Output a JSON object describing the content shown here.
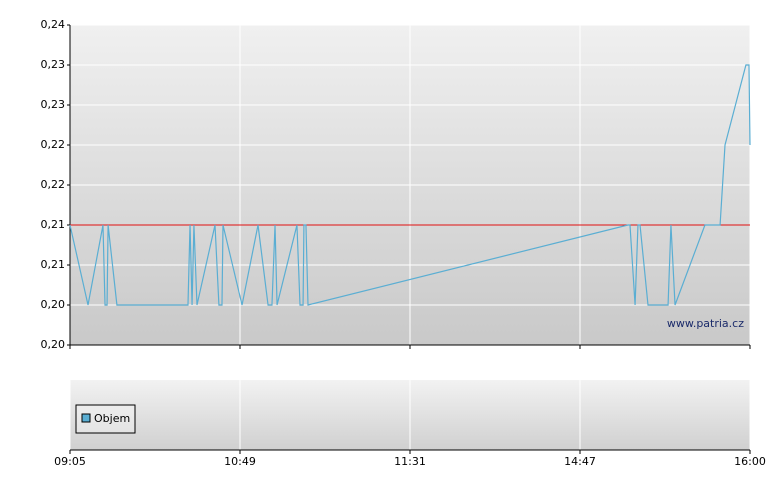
{
  "chart_data": {
    "type": "line",
    "watermark": "www.patria.cz",
    "legend_label": "Objem",
    "xlim": [
      0,
      4
    ],
    "xticks": [
      {
        "value": 0,
        "label": "09:05"
      },
      {
        "value": 1,
        "label": "10:49"
      },
      {
        "value": 2,
        "label": "11:31"
      },
      {
        "value": 3,
        "label": "14:47"
      },
      {
        "value": 4,
        "label": "16:00"
      }
    ],
    "ylim": [
      0.2,
      0.24
    ],
    "yticks": [
      {
        "value": 0.2,
        "label": "0,20"
      },
      {
        "value": 0.205,
        "label": "0,20"
      },
      {
        "value": 0.21,
        "label": "0,21"
      },
      {
        "value": 0.215,
        "label": "0,21"
      },
      {
        "value": 0.22,
        "label": "0,22"
      },
      {
        "value": 0.225,
        "label": "0,22"
      },
      {
        "value": 0.23,
        "label": "0,23"
      },
      {
        "value": 0.235,
        "label": "0,23"
      },
      {
        "value": 0.24,
        "label": "0,24"
      }
    ],
    "grid": true,
    "reference_line": {
      "value": 0.215,
      "color": "#e01010"
    },
    "color": "#5aaed3",
    "x": [
      0,
      0.106,
      0.194,
      0.206,
      0.218,
      0.224,
      0.276,
      0.694,
      0.706,
      0.718,
      0.729,
      0.747,
      0.853,
      0.876,
      0.894,
      0.9,
      1.012,
      1.106,
      1.165,
      1.188,
      1.206,
      1.218,
      1.335,
      1.353,
      1.371,
      1.376,
      1.388,
      1.4,
      3.282,
      3.294,
      3.324,
      3.341,
      3.353,
      3.4,
      3.518,
      3.535,
      3.559,
      3.735,
      3.824,
      3.853,
      3.976,
      3.994,
      4
    ],
    "values": [
      0.215,
      0.205,
      0.215,
      0.205,
      0.205,
      0.215,
      0.205,
      0.205,
      0.215,
      0.205,
      0.215,
      0.205,
      0.215,
      0.205,
      0.205,
      0.215,
      0.205,
      0.215,
      0.205,
      0.205,
      0.215,
      0.205,
      0.215,
      0.205,
      0.205,
      0.215,
      0.215,
      0.205,
      0.215,
      0.215,
      0.205,
      0.215,
      0.215,
      0.205,
      0.205,
      0.215,
      0.205,
      0.215,
      0.215,
      0.225,
      0.235,
      0.235,
      0.225
    ]
  }
}
